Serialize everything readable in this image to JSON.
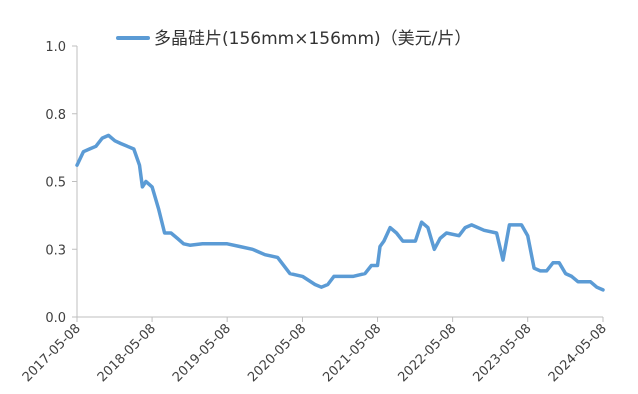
{
  "chart_data": {
    "type": "line",
    "ylim": [
      0,
      1.0
    ],
    "y_ticks": [
      "0.0",
      "0.3",
      "0.5",
      "0.8",
      "1.0"
    ],
    "y_tick_values": [
      0.0,
      0.25,
      0.5,
      0.75,
      1.0
    ],
    "x_tick_labels": [
      "2017-05-08",
      "2018-05-08",
      "2019-05-08",
      "2020-05-08",
      "2021-05-08",
      "2022-05-08",
      "2023-05-08",
      "2024-05-08"
    ],
    "legend_position": "top",
    "grid": false,
    "series": [
      {
        "name": "多晶硅片(156mm×156mm)（美元/片）",
        "color": "#5B9BD5",
        "points": [
          [
            "2017-05-08",
            0.56
          ],
          [
            "2017-06-08",
            0.61
          ],
          [
            "2017-07-08",
            0.62
          ],
          [
            "2017-08-08",
            0.63
          ],
          [
            "2017-09-08",
            0.66
          ],
          [
            "2017-10-08",
            0.67
          ],
          [
            "2017-11-08",
            0.65
          ],
          [
            "2017-12-08",
            0.64
          ],
          [
            "2018-01-08",
            0.63
          ],
          [
            "2018-02-08",
            0.62
          ],
          [
            "2018-03-08",
            0.56
          ],
          [
            "2018-03-22",
            0.48
          ],
          [
            "2018-04-08",
            0.5
          ],
          [
            "2018-05-08",
            0.48
          ],
          [
            "2018-06-08",
            0.4
          ],
          [
            "2018-07-08",
            0.31
          ],
          [
            "2018-08-08",
            0.31
          ],
          [
            "2018-09-08",
            0.29
          ],
          [
            "2018-10-08",
            0.27
          ],
          [
            "2018-11-08",
            0.265
          ],
          [
            "2019-01-08",
            0.27
          ],
          [
            "2019-03-08",
            0.27
          ],
          [
            "2019-05-08",
            0.27
          ],
          [
            "2019-07-08",
            0.26
          ],
          [
            "2019-09-08",
            0.25
          ],
          [
            "2019-11-08",
            0.23
          ],
          [
            "2020-01-08",
            0.22
          ],
          [
            "2020-03-08",
            0.16
          ],
          [
            "2020-05-08",
            0.15
          ],
          [
            "2020-07-08",
            0.12
          ],
          [
            "2020-08-08",
            0.11
          ],
          [
            "2020-09-08",
            0.12
          ],
          [
            "2020-10-08",
            0.15
          ],
          [
            "2020-11-08",
            0.15
          ],
          [
            "2021-01-08",
            0.15
          ],
          [
            "2021-03-08",
            0.16
          ],
          [
            "2021-04-08",
            0.19
          ],
          [
            "2021-05-08",
            0.19
          ],
          [
            "2021-05-20",
            0.26
          ],
          [
            "2021-06-08",
            0.28
          ],
          [
            "2021-07-08",
            0.33
          ],
          [
            "2021-08-08",
            0.31
          ],
          [
            "2021-09-08",
            0.28
          ],
          [
            "2021-11-08",
            0.28
          ],
          [
            "2021-12-08",
            0.35
          ],
          [
            "2022-01-08",
            0.33
          ],
          [
            "2022-02-08",
            0.25
          ],
          [
            "2022-03-08",
            0.29
          ],
          [
            "2022-04-08",
            0.31
          ],
          [
            "2022-06-08",
            0.3
          ],
          [
            "2022-07-08",
            0.33
          ],
          [
            "2022-08-08",
            0.34
          ],
          [
            "2022-10-08",
            0.32
          ],
          [
            "2022-12-08",
            0.31
          ],
          [
            "2023-01-08",
            0.21
          ],
          [
            "2023-02-08",
            0.34
          ],
          [
            "2023-04-08",
            0.34
          ],
          [
            "2023-05-08",
            0.3
          ],
          [
            "2023-06-08",
            0.18
          ],
          [
            "2023-07-08",
            0.17
          ],
          [
            "2023-08-08",
            0.17
          ],
          [
            "2023-09-08",
            0.2
          ],
          [
            "2023-10-08",
            0.2
          ],
          [
            "2023-11-08",
            0.16
          ],
          [
            "2023-12-08",
            0.15
          ],
          [
            "2024-01-08",
            0.13
          ],
          [
            "2024-03-08",
            0.13
          ],
          [
            "2024-04-08",
            0.11
          ],
          [
            "2024-05-08",
            0.1
          ]
        ]
      }
    ]
  }
}
